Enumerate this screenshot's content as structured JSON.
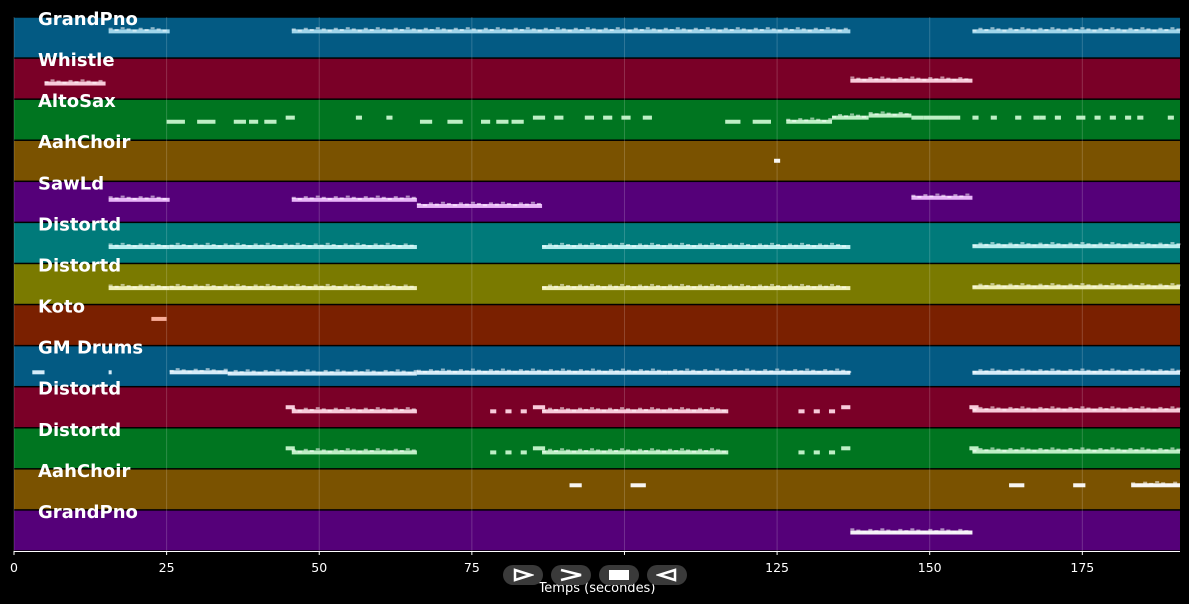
{
  "chart_data": {
    "type": "piano-roll",
    "title": "",
    "xlabel": "Temps (secondes)",
    "xlim": [
      0,
      191
    ],
    "x_ticks": [
      0,
      25,
      50,
      75,
      100,
      125,
      150,
      175
    ],
    "x_tick_labels": [
      "0",
      "25",
      "50",
      "75",
      "",
      "125",
      "150",
      "175"
    ],
    "grid": true,
    "tracks": [
      {
        "name": "GrandPno",
        "color": "#035a83",
        "note_color": "#a9dcef",
        "notes": [
          [
            15.5,
            25.5,
            0.35
          ],
          [
            45.5,
            137,
            0.35
          ],
          [
            157,
            191,
            0.35
          ]
        ]
      },
      {
        "name": "Whistle",
        "color": "#7a0027",
        "note_color": "#ffd6e4",
        "notes": [
          [
            5,
            15,
            0.62
          ],
          [
            137,
            157,
            0.55
          ]
        ]
      },
      {
        "name": "AltoSax",
        "color": "#007520",
        "note_color": "#c8f5cf",
        "notes": [
          [
            25,
            28,
            0.55
          ],
          [
            30,
            33,
            0.55
          ],
          [
            36,
            38,
            0.55
          ],
          [
            38.5,
            40,
            0.55
          ],
          [
            41,
            43,
            0.55
          ],
          [
            44.5,
            46,
            0.45
          ],
          [
            56,
            57,
            0.45
          ],
          [
            61,
            62,
            0.45
          ],
          [
            66.5,
            68.5,
            0.55
          ],
          [
            71,
            73.5,
            0.55
          ],
          [
            76.5,
            78,
            0.55
          ],
          [
            79,
            81,
            0.55
          ],
          [
            81.5,
            83.5,
            0.55
          ],
          [
            85,
            87,
            0.45
          ],
          [
            88.5,
            90,
            0.45
          ],
          [
            93.5,
            95,
            0.45
          ],
          [
            96.5,
            98,
            0.45
          ],
          [
            99.5,
            101,
            0.45
          ],
          [
            103,
            104.5,
            0.45
          ],
          [
            116.5,
            119,
            0.55
          ],
          [
            121,
            124,
            0.55
          ],
          [
            126.5,
            134,
            0.55
          ],
          [
            134,
            140,
            0.45
          ],
          [
            140,
            147,
            0.4
          ],
          [
            147,
            149,
            0.45
          ],
          [
            149,
            153,
            0.45
          ],
          [
            153,
            155,
            0.45
          ],
          [
            157,
            158,
            0.45
          ],
          [
            160,
            161,
            0.45
          ],
          [
            164,
            165,
            0.45
          ],
          [
            167,
            168,
            0.45
          ],
          [
            168,
            169,
            0.45
          ],
          [
            170.5,
            171.5,
            0.45
          ],
          [
            174,
            175.5,
            0.45
          ],
          [
            177,
            178,
            0.45
          ],
          [
            179.5,
            180.5,
            0.45
          ],
          [
            182,
            183,
            0.45
          ],
          [
            184,
            185,
            0.45
          ],
          [
            189,
            190,
            0.45
          ]
        ]
      },
      {
        "name": "AahChoir",
        "color": "#7a5200",
        "note_color": "#ffffff",
        "notes": [
          [
            124.5,
            125.5,
            0.5
          ]
        ]
      },
      {
        "name": "SawLd",
        "color": "#550079",
        "note_color": "#f0c0ff",
        "notes": [
          [
            15.5,
            25.5,
            0.45
          ],
          [
            45.5,
            66,
            0.45
          ],
          [
            66,
            86.5,
            0.6
          ],
          [
            147,
            157,
            0.4
          ]
        ]
      },
      {
        "name": "Distortd",
        "color": "#007a7a",
        "note_color": "#c4f6f6",
        "notes": [
          [
            15.5,
            25.5,
            0.6
          ],
          [
            25.5,
            66,
            0.6
          ],
          [
            86.5,
            137,
            0.6
          ],
          [
            157,
            191,
            0.58
          ]
        ]
      },
      {
        "name": "Distortd",
        "color": "#7a7a00",
        "note_color": "#f5f5c0",
        "notes": [
          [
            15.5,
            25.5,
            0.6
          ],
          [
            25.5,
            66,
            0.6
          ],
          [
            86.5,
            137,
            0.6
          ],
          [
            157,
            191,
            0.58
          ]
        ]
      },
      {
        "name": "Koto",
        "color": "#7a2000",
        "note_color": "#ffb4a0",
        "notes": [
          [
            22.5,
            25,
            0.35
          ]
        ]
      },
      {
        "name": "GM Drums",
        "color": "#035a83",
        "note_color": "#e0f4ff",
        "notes": [
          [
            3,
            5,
            0.65
          ],
          [
            15.5,
            16,
            0.65
          ],
          [
            25.5,
            35,
            0.65
          ],
          [
            35,
            66,
            0.68
          ],
          [
            66,
            107,
            0.66
          ],
          [
            107,
            137,
            0.66
          ],
          [
            157,
            191,
            0.66
          ]
        ]
      },
      {
        "name": "Distortd",
        "color": "#7a0027",
        "note_color": "#ffd6e4",
        "notes": [
          [
            44.5,
            46,
            0.5
          ],
          [
            45.5,
            66,
            0.6
          ],
          [
            78,
            79,
            0.6
          ],
          [
            80.5,
            81.5,
            0.6
          ],
          [
            83,
            84,
            0.6
          ],
          [
            85,
            87,
            0.5
          ],
          [
            86.5,
            117,
            0.6
          ],
          [
            128.5,
            129.5,
            0.6
          ],
          [
            131,
            132,
            0.6
          ],
          [
            133.5,
            134.5,
            0.6
          ],
          [
            135.5,
            137,
            0.5
          ],
          [
            156.5,
            158,
            0.5
          ],
          [
            157,
            191,
            0.58
          ]
        ]
      },
      {
        "name": "Distortd",
        "color": "#007520",
        "note_color": "#c8f5cf",
        "notes": [
          [
            44.5,
            46,
            0.5
          ],
          [
            45.5,
            66,
            0.6
          ],
          [
            78,
            79,
            0.6
          ],
          [
            80.5,
            81.5,
            0.6
          ],
          [
            83,
            84,
            0.6
          ],
          [
            85,
            87,
            0.5
          ],
          [
            86.5,
            117,
            0.6
          ],
          [
            128.5,
            129.5,
            0.6
          ],
          [
            131,
            132,
            0.6
          ],
          [
            133.5,
            134.5,
            0.6
          ],
          [
            135.5,
            137,
            0.5
          ],
          [
            156.5,
            158,
            0.5
          ],
          [
            157,
            191,
            0.58
          ]
        ]
      },
      {
        "name": "AahChoir",
        "color": "#7a5200",
        "note_color": "#ffffff",
        "notes": [
          [
            91,
            93,
            0.4
          ],
          [
            101,
            103.5,
            0.4
          ],
          [
            163,
            165.5,
            0.4
          ],
          [
            173.5,
            175.5,
            0.4
          ],
          [
            183,
            191,
            0.4
          ]
        ]
      },
      {
        "name": "GrandPno",
        "color": "#550079",
        "note_color": "#ffffff",
        "notes": [
          [
            137,
            157,
            0.55
          ]
        ]
      }
    ]
  },
  "controls": [
    {
      "name": "step-forward-icon"
    },
    {
      "name": "fast-forward-icon"
    },
    {
      "name": "stop-icon"
    },
    {
      "name": "rewind-icon"
    }
  ]
}
